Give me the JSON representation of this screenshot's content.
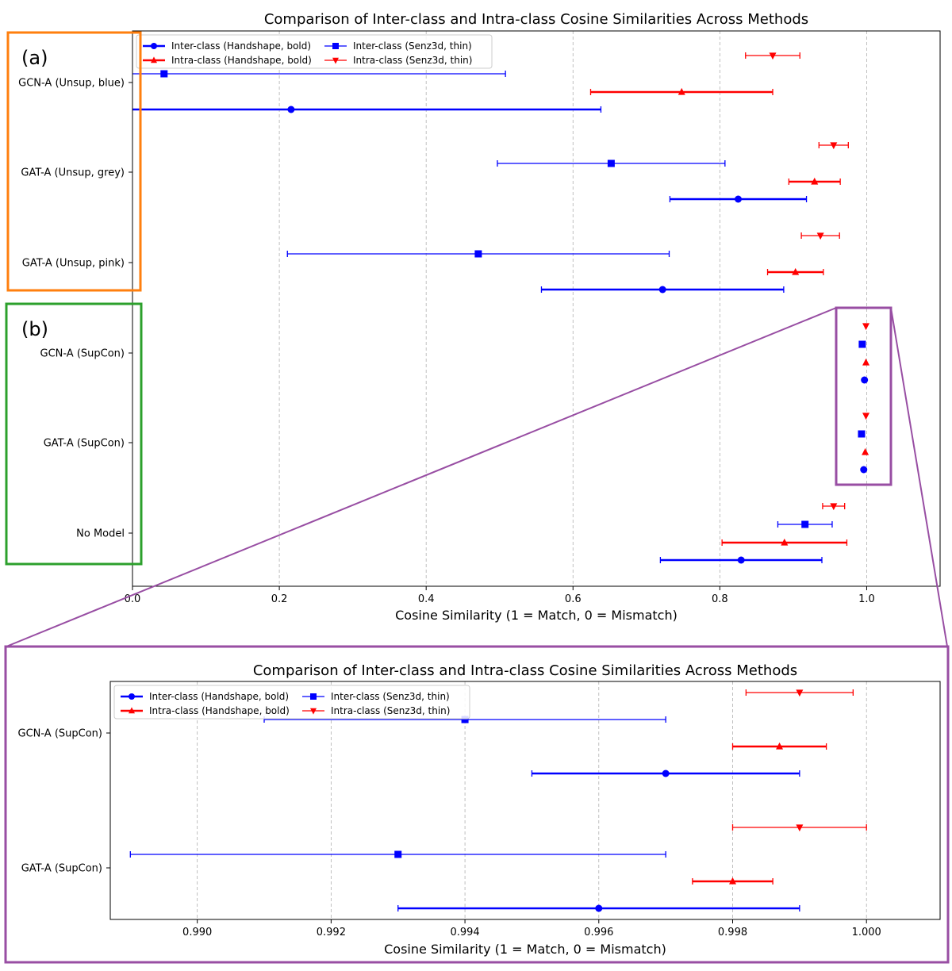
{
  "figure": {
    "panel_a_tag": "(a)",
    "panel_b_tag": "(b)"
  },
  "colors": {
    "inter": "#0000ff",
    "intra": "#ff0000",
    "panel_a_box": "#ff7f0e",
    "panel_b_box": "#2ca02c",
    "zoom": "#984ea3",
    "grid": "#b0b0b0"
  },
  "chart_data": [
    {
      "type": "errorbar",
      "title": "Comparison of Inter-class and Intra-class Cosine Similarities Across Methods",
      "xlabel": "Cosine Similarity (1 = Match, 0 = Mismatch)",
      "ylabel": "",
      "xlim": [
        0.0,
        1.1
      ],
      "xticks": [
        "0.0",
        "0.2",
        "0.4",
        "0.6",
        "0.8",
        "1.0"
      ],
      "grid": "vertical dashed",
      "legend_position": "top-left",
      "legend": [
        "Inter-class (Handshape, bold)",
        "Intra-class (Handshape, bold)",
        "Inter-class (Senz3d, thin)",
        "Intra-class (Senz3d, thin)"
      ],
      "categories": [
        "GCN-A (Unsup, blue)",
        "GAT-A (Unsup, grey)",
        "GAT-A (Unsup, pink)",
        "GCN-A (SupCon)",
        "GAT-A (SupCon)",
        "No Model"
      ],
      "series": [
        {
          "name": "Intra-class (Senz3d, thin)",
          "marker": "triangle-down",
          "values": [
            {
              "mean": 0.872,
              "err": 0.037
            },
            {
              "mean": 0.955,
              "err": 0.02
            },
            {
              "mean": 0.937,
              "err": 0.026
            },
            {
              "mean": 0.999,
              "err": 0.0
            },
            {
              "mean": 0.999,
              "err": 0.0
            },
            {
              "mean": 0.955,
              "err": 0.015
            }
          ]
        },
        {
          "name": "Inter-class (Senz3d, thin)",
          "marker": "square",
          "values": [
            {
              "mean": 0.043,
              "err": 0.465
            },
            {
              "mean": 0.652,
              "err": 0.155
            },
            {
              "mean": 0.471,
              "err": 0.26
            },
            {
              "mean": 0.994,
              "err": 0.0
            },
            {
              "mean": 0.993,
              "err": 0.0
            },
            {
              "mean": 0.916,
              "err": 0.037
            }
          ]
        },
        {
          "name": "Intra-class (Handshape, bold)",
          "marker": "triangle-up",
          "values": [
            {
              "mean": 0.748,
              "err": 0.124
            },
            {
              "mean": 0.929,
              "err": 0.035
            },
            {
              "mean": 0.903,
              "err": 0.038
            },
            {
              "mean": 0.999,
              "err": 0.0
            },
            {
              "mean": 0.998,
              "err": 0.0
            },
            {
              "mean": 0.888,
              "err": 0.085
            }
          ]
        },
        {
          "name": "Inter-class (Handshape, bold)",
          "marker": "circle",
          "values": [
            {
              "mean": 0.216,
              "err": 0.422
            },
            {
              "mean": 0.825,
              "err": 0.093
            },
            {
              "mean": 0.722,
              "err": 0.165
            },
            {
              "mean": 0.997,
              "err": 0.0
            },
            {
              "mean": 0.996,
              "err": 0.0
            },
            {
              "mean": 0.829,
              "err": 0.11
            }
          ]
        }
      ]
    },
    {
      "type": "errorbar",
      "title": "Comparison of Inter-class and Intra-class Cosine Similarities Across Methods",
      "xlabel": "Cosine Similarity (1 = Match, 0 = Mismatch)",
      "ylabel": "",
      "xlim": [
        0.9887,
        1.0011
      ],
      "xticks": [
        "0.990",
        "0.992",
        "0.994",
        "0.996",
        "0.998",
        "1.000"
      ],
      "grid": "vertical dashed",
      "legend_position": "top-left",
      "legend": [
        "Inter-class (Handshape, bold)",
        "Intra-class (Handshape, bold)",
        "Inter-class (Senz3d, thin)",
        "Intra-class (Senz3d, thin)"
      ],
      "categories": [
        "GCN-A (SupCon)",
        "GAT-A (SupCon)"
      ],
      "series": [
        {
          "name": "Intra-class (Senz3d, thin)",
          "marker": "triangle-down",
          "values": [
            {
              "mean": 0.999,
              "err": 0.0008
            },
            {
              "mean": 0.999,
              "err": 0.001
            }
          ]
        },
        {
          "name": "Inter-class (Senz3d, thin)",
          "marker": "square",
          "values": [
            {
              "mean": 0.994,
              "err": 0.003
            },
            {
              "mean": 0.993,
              "err": 0.004
            }
          ]
        },
        {
          "name": "Intra-class (Handshape, bold)",
          "marker": "triangle-up",
          "values": [
            {
              "mean": 0.9987,
              "err": 0.0007
            },
            {
              "mean": 0.998,
              "err": 0.0006
            }
          ]
        },
        {
          "name": "Inter-class (Handshape, bold)",
          "marker": "circle",
          "values": [
            {
              "mean": 0.997,
              "err": 0.002
            },
            {
              "mean": 0.996,
              "err": 0.003
            }
          ]
        }
      ]
    }
  ]
}
